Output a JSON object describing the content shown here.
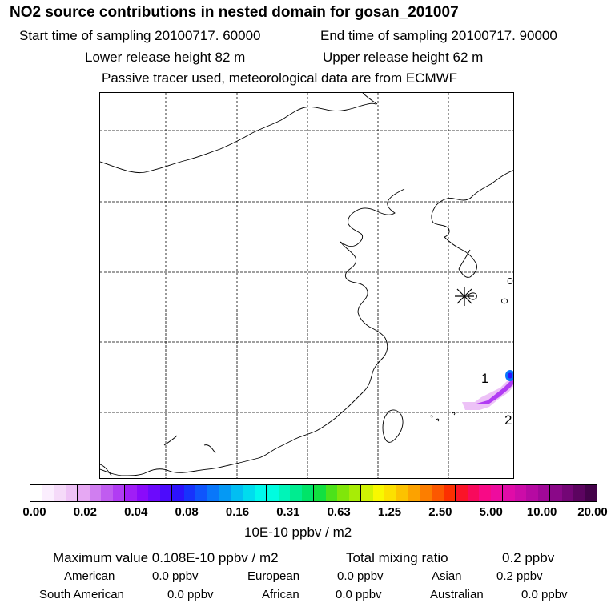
{
  "header": {
    "title": "NO2 source contributions in nested domain for gosan_201007",
    "start_time": "Start time of sampling 20100717. 60000",
    "end_time": "End time of sampling 20100717. 90000",
    "lower_release": "Lower release height   82 m",
    "upper_release": "Upper release height   62 m",
    "tracer_note": "Passive tracer used, meteorological data are from ECMWF"
  },
  "map": {
    "station_marker": "receptor-star",
    "label_1": "1",
    "label_2": "2"
  },
  "colorbar": {
    "unit": "10E-10 ppbv / m2",
    "ticks": [
      "0.00",
      "0.02",
      "0.04",
      "0.08",
      "0.16",
      "0.31",
      "0.63",
      "1.25",
      "2.50",
      "5.00",
      "10.00",
      "20.00"
    ],
    "colors": [
      "#ffffff",
      "#fbeefe",
      "#f5daf9",
      "#eec2f6",
      "#e6a8f3",
      "#d07ef0",
      "#c05cf0",
      "#b13cf3",
      "#a01ef6",
      "#8a0bfa",
      "#6c0afc",
      "#4c0cfc",
      "#2d12fc",
      "#1733fc",
      "#0f55fc",
      "#0977fa",
      "#0599f4",
      "#02bef2",
      "#00dcee",
      "#00f8ec",
      "#00fce0",
      "#00f4b8",
      "#00ec90",
      "#00e468",
      "#12e040",
      "#4ce21a",
      "#80e60a",
      "#a8ec06",
      "#d0f204",
      "#f8f800",
      "#fce000",
      "#fcc200",
      "#fca200",
      "#fc7e00",
      "#fc5800",
      "#fc3000",
      "#fa1428",
      "#f80a5c",
      "#f80a86",
      "#ee0c9e",
      "#e00ca8",
      "#cc0ca8",
      "#b60aa2",
      "#a00898",
      "#8a0888",
      "#740676",
      "#5c0460",
      "#44024a"
    ]
  },
  "summary": {
    "max_value": "Maximum value  0.108E-10 ppbv / m2",
    "total_mixing_label": "Total mixing ratio",
    "total_mixing_value": "0.2 ppbv",
    "regions": [
      {
        "name": "American",
        "value": "0.0 ppbv"
      },
      {
        "name": "European",
        "value": "0.0 ppbv"
      },
      {
        "name": "Asian",
        "value": "0.2 ppbv"
      },
      {
        "name": "South American",
        "value": "0.0 ppbv"
      },
      {
        "name": "African",
        "value": "0.0 ppbv"
      },
      {
        "name": "Australian",
        "value": "0.0 ppbv"
      }
    ]
  }
}
